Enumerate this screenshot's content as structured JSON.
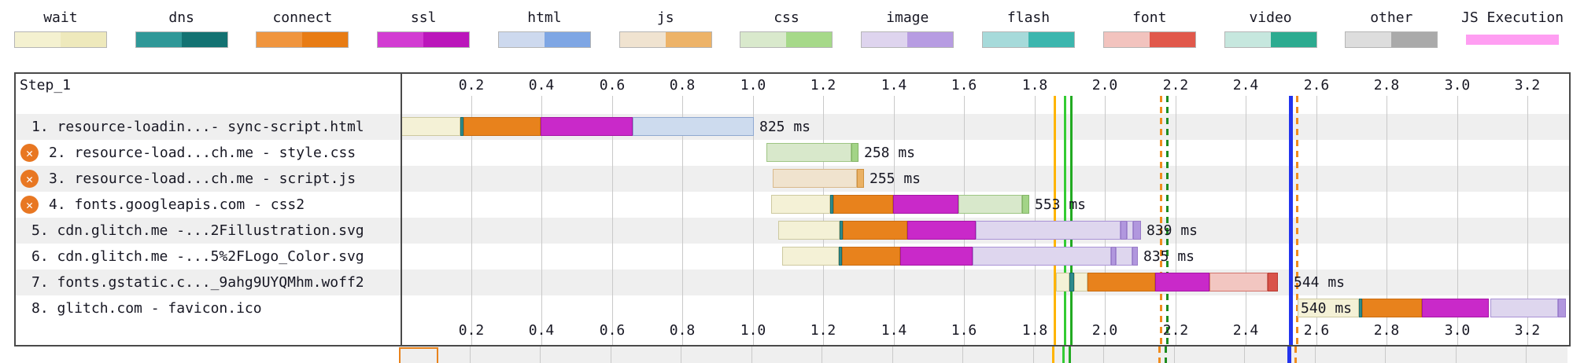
{
  "legend": {
    "items": [
      {
        "label": "wait",
        "light": "#f4f1d0",
        "dark": "#eee9bc"
      },
      {
        "label": "dns",
        "light": "#2f9898",
        "dark": "#137272"
      },
      {
        "label": "connect",
        "light": "#f0953e",
        "dark": "#e87c14"
      },
      {
        "label": "ssl",
        "light": "#d23cd2",
        "dark": "#bb16bb"
      },
      {
        "label": "html",
        "light": "#cdd9ee",
        "dark": "#7ea6e4"
      },
      {
        "label": "js",
        "light": "#f0e3d0",
        "dark": "#edb368"
      },
      {
        "label": "css",
        "light": "#d9e9cc",
        "dark": "#a6d989"
      },
      {
        "label": "image",
        "light": "#ded4ee",
        "dark": "#b79ce2"
      },
      {
        "label": "flash",
        "light": "#a6dada",
        "dark": "#3cb6ae"
      },
      {
        "label": "font",
        "light": "#f2c3be",
        "dark": "#e1584b"
      },
      {
        "label": "video",
        "light": "#c6e7de",
        "dark": "#2cab90"
      },
      {
        "label": "other",
        "light": "#dddddd",
        "dark": "#aaaaaa"
      },
      {
        "label": "JS Execution",
        "light": "#ff9ef2",
        "dark": "#ff9ef2",
        "thin": true
      }
    ]
  },
  "chart_data": {
    "type": "waterfall",
    "step_label": "Step_1",
    "axis": {
      "unit": "seconds",
      "ticks": [
        0.2,
        0.4,
        0.6,
        0.8,
        1.0,
        1.2,
        1.4,
        1.6,
        1.8,
        2.0,
        2.2,
        2.4,
        2.6,
        2.8,
        3.0,
        3.2
      ],
      "max": 3.318,
      "grid": true
    },
    "segment_colors": {
      "wait": {
        "fill": "#f4f1d6",
        "border": "#cdc9a0"
      },
      "dns": {
        "fill": "#2e8b8b",
        "border": "#1d6d6d"
      },
      "connect": {
        "fill": "#e8821c",
        "border": "#c96c10"
      },
      "ssl": {
        "fill": "#c929c9",
        "border": "#a515a5"
      },
      "html": {
        "fill": "#cddbee",
        "border": "#8fa9d0"
      },
      "css_light": {
        "fill": "#d8e8cb",
        "border": "#9dc583"
      },
      "css_dark": {
        "fill": "#a3d487",
        "border": "#84b568"
      },
      "js_light": {
        "fill": "#f0e3ce",
        "border": "#d9b98c"
      },
      "js_dark": {
        "fill": "#eab164",
        "border": "#cf9240"
      },
      "image_light": {
        "fill": "#ded6ee",
        "border": "#a992d6"
      },
      "image_dark": {
        "fill": "#b197de",
        "border": "#9a7cc9"
      },
      "font_light": {
        "fill": "#f2c6c1",
        "border": "#d2736b"
      },
      "font_dark": {
        "fill": "#d9534a",
        "border": "#b93c34"
      }
    },
    "requests": [
      {
        "label": "1. resource-loadin...- sync-script.html",
        "error_icon": false,
        "time_label": "825 ms",
        "segments": [
          [
            "wait",
            0.0,
            0.17
          ],
          [
            "dns",
            0.17,
            0.179
          ],
          [
            "connect",
            0.179,
            0.398
          ],
          [
            "ssl",
            0.398,
            0.659
          ],
          [
            "html",
            0.659,
            1.003
          ]
        ]
      },
      {
        "label": "2. resource-load...ch.me - style.css",
        "error_icon": true,
        "time_label": "258 ms",
        "segments": [
          [
            "css_light",
            1.039,
            1.28
          ],
          [
            "css_dark",
            1.28,
            1.301
          ]
        ]
      },
      {
        "label": "3. resource-load...ch.me - script.js",
        "error_icon": true,
        "time_label": "255 ms",
        "segments": [
          [
            "js_light",
            1.057,
            1.296
          ],
          [
            "js_dark",
            1.296,
            1.316
          ]
        ]
      },
      {
        "label": "4. fonts.googleapis.com - css2",
        "error_icon": true,
        "time_label": "553 ms",
        "segments": [
          [
            "wait",
            1.053,
            1.22
          ],
          [
            "dns",
            1.22,
            1.229
          ],
          [
            "connect",
            1.229,
            1.399
          ],
          [
            "ssl",
            1.399,
            1.585
          ],
          [
            "css_light",
            1.585,
            1.766
          ],
          [
            "css_dark",
            1.766,
            1.786
          ]
        ]
      },
      {
        "label": "5. cdn.glitch.me -...2Fillustration.svg",
        "error_icon": false,
        "time_label": "839 ms",
        "segments": [
          [
            "wait",
            1.073,
            1.247
          ],
          [
            "dns",
            1.247,
            1.256
          ],
          [
            "connect",
            1.256,
            1.439
          ],
          [
            "ssl",
            1.439,
            1.634
          ],
          [
            "image_light",
            1.634,
            2.045
          ],
          [
            "image_dark",
            2.045,
            2.063
          ],
          [
            "image_light",
            2.063,
            2.081
          ],
          [
            "image_dark",
            2.081,
            2.103
          ]
        ]
      },
      {
        "label": "6. cdn.glitch.me -...5%2FLogo_Color.svg",
        "error_icon": false,
        "time_label": "835 ms",
        "segments": [
          [
            "wait",
            1.084,
            1.245
          ],
          [
            "dns",
            1.245,
            1.254
          ],
          [
            "connect",
            1.254,
            1.419
          ],
          [
            "ssl",
            1.419,
            1.625
          ],
          [
            "image_light",
            1.625,
            2.018
          ],
          [
            "image_dark",
            2.018,
            2.032
          ],
          [
            "image_light",
            2.032,
            2.077
          ],
          [
            "image_dark",
            2.077,
            2.094
          ]
        ]
      },
      {
        "label": "7. fonts.gstatic.c..._9ahg9UYQMhm.woff2",
        "error_icon": false,
        "time_label": "544 ms",
        "label_t": 2.535,
        "segments": [
          [
            "wait",
            1.862,
            1.9
          ],
          [
            "dns",
            1.9,
            1.913
          ],
          [
            "wait",
            1.913,
            1.951
          ],
          [
            "connect",
            1.951,
            2.143
          ],
          [
            "ssl",
            2.143,
            2.297
          ],
          [
            "font_light",
            2.297,
            2.463
          ],
          [
            "font_dark",
            2.463,
            2.492
          ]
        ]
      },
      {
        "label": "8. glitch.com - favicon.ico",
        "error_icon": false,
        "time_label": "540 ms",
        "label_t": 2.556,
        "label_at_start": true,
        "segments": [
          [
            "wait",
            2.548,
            2.722
          ],
          [
            "dns",
            2.722,
            2.731
          ],
          [
            "connect",
            2.731,
            2.901
          ],
          [
            "ssl",
            2.901,
            3.091
          ],
          [
            "image_light",
            3.095,
            3.287
          ],
          [
            "image_dark",
            3.287,
            3.31
          ]
        ]
      }
    ],
    "events": [
      {
        "t": 1.855,
        "color": "#ffb400",
        "style": "solid",
        "width": 3
      },
      {
        "t": 1.884,
        "color": "#33cc33",
        "style": "solid",
        "width": 3
      },
      {
        "t": 1.902,
        "color": "#22aa22",
        "style": "solid",
        "width": 3
      },
      {
        "t": 2.156,
        "color": "#f08c1e",
        "style": "dashed",
        "width": 3
      },
      {
        "t": 2.174,
        "color": "#1e8c1e",
        "style": "dashed",
        "width": 3
      },
      {
        "t": 2.523,
        "color": "#2233ee",
        "style": "solid",
        "width": 5
      },
      {
        "t": 2.543,
        "color": "#f08c1e",
        "style": "dashed",
        "width": 3
      }
    ],
    "next_step_preview": {
      "first_request_outline": [
        0.0,
        0.112
      ]
    }
  }
}
